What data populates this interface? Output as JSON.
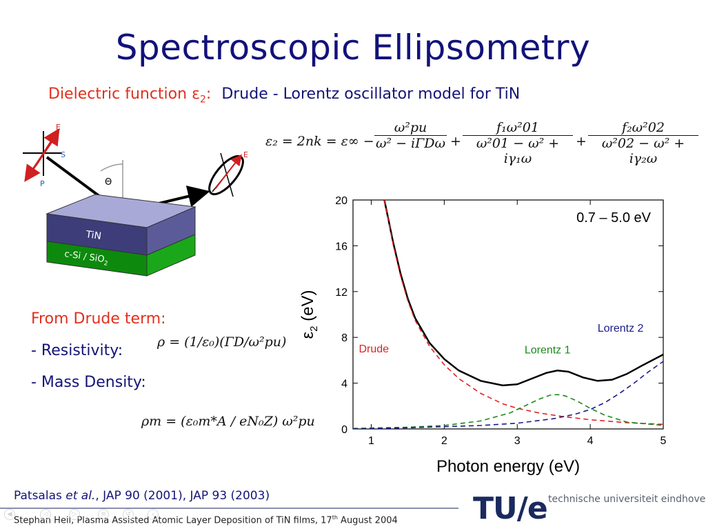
{
  "slide": {
    "title": "Spectroscopic Ellipsometry",
    "subtitle_prefix": "Dielectric function ε",
    "subtitle_sub": "2",
    "subtitle_colon": ":",
    "subtitle_rest": "Drude - Lorentz oscillator model for TiN"
  },
  "diagram": {
    "label_E1": "E",
    "label_S": "S",
    "label_P": "P",
    "label_E2": "E",
    "label_theta": "Θ",
    "label_tin": "TiN",
    "label_substrate": "c-Si / SiO",
    "label_substrate_sub": "2"
  },
  "equation": {
    "lhs": "ε₂ = 2nk = ε∞ −",
    "term1_num": "ω²pu",
    "term1_den": "ω² − iΓDω",
    "term2_num": "f₁ω²01",
    "term2_den": "ω²01 − ω² + iγ₁ω",
    "term3_num": "f₂ω²02",
    "term3_den": "ω²02 − ω² + iγ₂ω",
    "plus": "+"
  },
  "drude_section": {
    "heading": "From Drude term:",
    "resistivity_label": "- Resistivity:",
    "mass_label": "- Mass Density:",
    "rho_formula": "ρ = (1/ε₀)(ΓD/ω²pu)",
    "rhom_formula": "ρm = (ε₀m*A / eN₀Z) ω²pu"
  },
  "footer": {
    "citation_authors": "Patsalas ",
    "citation_etal": "et al.",
    "citation_rest": ", JAP 90 (2001), JAP 93 (2003)",
    "author_line": "Stephan Heil, Plasma Assisted Atomic Layer Deposition of TiN films, 17",
    "author_sup": "th",
    "author_end": " August 2004",
    "logo_text": "TU/e",
    "university": "technische universiteit eindhoven"
  },
  "colors": {
    "title": "#12127a",
    "accent_red": "#e0301e",
    "total": "#000000",
    "drude": "#e02020",
    "lorentz1": "#1a8a1a",
    "lorentz2": "#1a1a8a"
  },
  "chart_data": {
    "type": "line",
    "xlabel": "Photon energy (eV)",
    "ylabel_main": "ε",
    "ylabel_sub": "2",
    "ylabel_unit": "(eV)",
    "xlim": [
      0.75,
      5.0
    ],
    "ylim": [
      0,
      20
    ],
    "xticks": [
      1,
      2,
      3,
      4,
      5
    ],
    "yticks": [
      0,
      4,
      8,
      12,
      16,
      20
    ],
    "annotation_range": "0.7 – 5.0 eV",
    "grid": false,
    "series": [
      {
        "name": "total",
        "style": "solid",
        "x": [
          1.18,
          1.3,
          1.4,
          1.5,
          1.6,
          1.8,
          2.0,
          2.2,
          2.5,
          2.8,
          3.0,
          3.2,
          3.4,
          3.55,
          3.7,
          3.9,
          4.1,
          4.3,
          4.5,
          4.7,
          4.85,
          5.0
        ],
        "y": [
          20,
          16.3,
          13.6,
          11.4,
          9.7,
          7.5,
          6.1,
          5.1,
          4.2,
          3.8,
          3.9,
          4.4,
          4.9,
          5.1,
          5.0,
          4.5,
          4.2,
          4.3,
          4.8,
          5.5,
          6.0,
          6.5
        ]
      },
      {
        "name": "Drude",
        "style": "dashed",
        "x": [
          1.18,
          1.3,
          1.4,
          1.5,
          1.6,
          1.8,
          2.0,
          2.2,
          2.5,
          2.8,
          3.0,
          3.3,
          3.6,
          4.0,
          4.5,
          5.0
        ],
        "y": [
          20,
          16.1,
          13.4,
          11.2,
          9.5,
          7.2,
          5.6,
          4.4,
          3.1,
          2.2,
          1.8,
          1.4,
          1.1,
          0.8,
          0.55,
          0.4
        ]
      },
      {
        "name": "Lorentz 1",
        "style": "dashed",
        "x": [
          0.75,
          1.5,
          2.0,
          2.5,
          2.9,
          3.1,
          3.3,
          3.45,
          3.55,
          3.65,
          3.8,
          4.0,
          4.2,
          4.5,
          5.0
        ],
        "y": [
          0.05,
          0.15,
          0.3,
          0.7,
          1.4,
          2.0,
          2.6,
          2.95,
          3.0,
          2.9,
          2.5,
          1.8,
          1.2,
          0.6,
          0.3
        ]
      },
      {
        "name": "Lorentz 2",
        "style": "dashed",
        "x": [
          0.75,
          1.5,
          2.0,
          2.5,
          3.0,
          3.5,
          3.8,
          4.0,
          4.2,
          4.4,
          4.6,
          4.8,
          5.0
        ],
        "y": [
          0.0,
          0.1,
          0.2,
          0.3,
          0.5,
          0.9,
          1.3,
          1.7,
          2.3,
          3.1,
          4.0,
          5.0,
          5.9
        ]
      }
    ],
    "series_labels": {
      "Drude": "Drude",
      "Lorentz 1": "Lorentz 1",
      "Lorentz 2": "Lorentz 2"
    }
  }
}
